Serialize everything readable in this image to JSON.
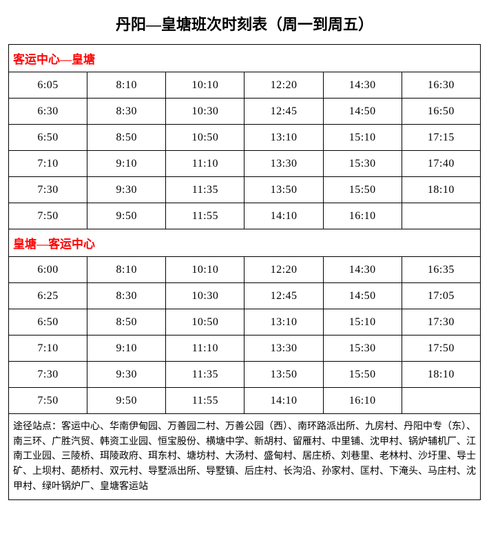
{
  "title": "丹阳—皇塘班次时刻表（周一到周五）",
  "sections": [
    {
      "header": "客运中心—皇塘",
      "rows": [
        [
          "6:05",
          "8:10",
          "10:10",
          "12:20",
          "14:30",
          "16:30"
        ],
        [
          "6:30",
          "8:30",
          "10:30",
          "12:45",
          "14:50",
          "16:50"
        ],
        [
          "6:50",
          "8:50",
          "10:50",
          "13:10",
          "15:10",
          "17:15"
        ],
        [
          "7:10",
          "9:10",
          "11:10",
          "13:30",
          "15:30",
          "17:40"
        ],
        [
          "7:30",
          "9:30",
          "11:35",
          "13:50",
          "15:50",
          "18:10"
        ],
        [
          "7:50",
          "9:50",
          "11:55",
          "14:10",
          "16:10",
          ""
        ]
      ]
    },
    {
      "header": "皇塘—客运中心",
      "rows": [
        [
          "6:00",
          "8:10",
          "10:10",
          "12:20",
          "14:30",
          "16:35"
        ],
        [
          "6:25",
          "8:30",
          "10:30",
          "12:45",
          "14:50",
          "17:05"
        ],
        [
          "6:50",
          "8:50",
          "10:50",
          "13:10",
          "15:10",
          "17:30"
        ],
        [
          "7:10",
          "9:10",
          "11:10",
          "13:30",
          "15:30",
          "17:50"
        ],
        [
          "7:30",
          "9:30",
          "11:35",
          "13:50",
          "15:50",
          "18:10"
        ],
        [
          "7:50",
          "9:50",
          "11:55",
          "14:10",
          "16:10",
          ""
        ]
      ]
    }
  ],
  "footer": "途径站点：客运中心、华南伊甸园、万善园二村、万善公园（西）、南环路派出所、九房村、丹阳中专（东）、南三环、广胜汽贸、韩资工业园、恒宝股份、横塘中学、新胡村、留雁村、中里铺、沈甲村、锅炉辅机厂、江南工业园、三陵桥、珥陵政府、珥东村、塘坊村、大汤村、盛甸村、居庄桥、刘巷里、老林村、沙圩里、导士矿、上坝村、葩桥村、双元村、导墅派出所、导墅镇、后庄村、长沟沿、孙家村、匡村、下淹头、马庄村、沈甲村、绿叶锅炉厂、皇塘客运站",
  "columns": 6,
  "colors": {
    "border": "#000000",
    "text": "#000000",
    "header_text": "#ff0000",
    "background": "#ffffff"
  },
  "font_sizes": {
    "title": 22,
    "section_header": 17,
    "cell": 16,
    "footer": 14
  }
}
